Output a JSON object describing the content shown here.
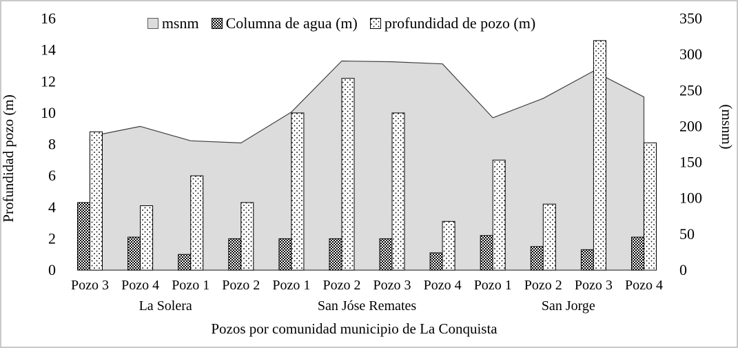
{
  "chart_data": {
    "type": "combo: area (right axis) + grouped patterned bars (left axis)",
    "categories": [
      "Pozo 3",
      "Pozo 4",
      "Pozo 1",
      "Pozo 2",
      "Pozo 1",
      "Pozo 2",
      "Pozo 3",
      "Pozo 4",
      "Pozo 1",
      "Pozo 2",
      "Pozo 3",
      "Pozo 4"
    ],
    "groups": [
      {
        "label": "La Solera",
        "from": 0,
        "to": 3
      },
      {
        "label": "San Jóse Remates",
        "from": 4,
        "to": 7
      },
      {
        "label": "San Jorge",
        "from": 8,
        "to": 11
      }
    ],
    "series": [
      {
        "name": "msnm",
        "type": "area",
        "axis": "right",
        "values": [
          186,
          200,
          180,
          177,
          220,
          291,
          290,
          287,
          212,
          239,
          277,
          241
        ]
      },
      {
        "name": "Columna de agua (m)",
        "type": "bar",
        "axis": "left",
        "pattern": "checker",
        "values": [
          4.3,
          2.1,
          1.0,
          2.0,
          2.0,
          2.0,
          2.0,
          1.1,
          2.2,
          1.5,
          1.3,
          2.1
        ]
      },
      {
        "name": "profundidad de pozo (m)",
        "type": "bar",
        "axis": "left",
        "pattern": "dots",
        "values": [
          8.8,
          4.1,
          6.0,
          4.3,
          10.0,
          12.2,
          10.0,
          3.1,
          7.0,
          4.2,
          14.6,
          8.1
        ]
      }
    ],
    "left_axis": {
      "label": "Profundidad pozo (m)",
      "min": 0,
      "max": 16,
      "step": 2,
      "ticks": [
        0,
        2,
        4,
        6,
        8,
        10,
        12,
        14,
        16
      ]
    },
    "right_axis": {
      "label": "(msnm)",
      "min": 0,
      "max": 350,
      "step": 50,
      "ticks": [
        0,
        50,
        100,
        150,
        200,
        250,
        300,
        350
      ]
    },
    "x_axis": {
      "label": "Pozos por comunidad municipio de La Conquista"
    },
    "legend": [
      "msnm",
      "Columna de agua (m)",
      "profundidad de pozo (m)"
    ],
    "legend_position": "top",
    "grid": false,
    "colors": {
      "area_fill": "#dcdcdc",
      "area_stroke": "#404040",
      "bar_stroke": "#000000",
      "pattern_ink": "#000000",
      "background": "#ffffff",
      "frame_border": "#c9c9c9",
      "text": "#000000"
    }
  }
}
